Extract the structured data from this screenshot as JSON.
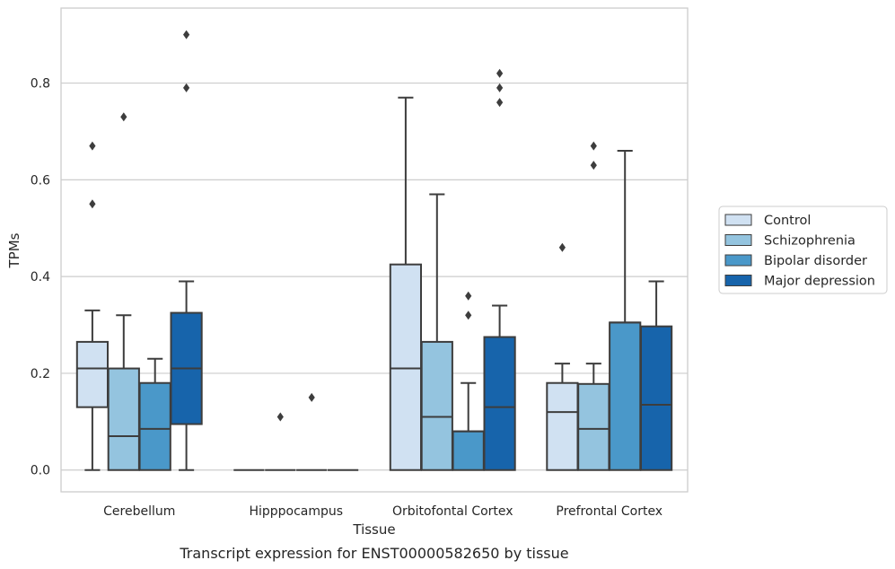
{
  "chart_data": {
    "type": "boxplot",
    "title": "",
    "caption": "Transcript expression for ENST00000582650 by tissue",
    "xlabel": "Tissue",
    "ylabel": "TPMs",
    "ylim": [
      -0.045,
      0.955
    ],
    "yticks": [
      "0.0",
      "0.2",
      "0.4",
      "0.6",
      "0.8"
    ],
    "grid": "horizontal",
    "legend_position": "right",
    "categories": [
      "Cerebellum",
      "Hipppocampus",
      "Orbitofontal Cortex",
      "Prefrontal Cortex"
    ],
    "series": [
      {
        "name": "Control",
        "color": "#d0e1f2",
        "boxes": [
          {
            "whislo": 0.0,
            "q1": 0.13,
            "med": 0.21,
            "q3": 0.265,
            "whishi": 0.33,
            "fliers": [
              0.55,
              0.67
            ]
          },
          {
            "whislo": 0.0,
            "q1": 0.0,
            "med": 0.0,
            "q3": 0.0,
            "whishi": 0.0,
            "fliers": []
          },
          {
            "whislo": 0.0,
            "q1": 0.0,
            "med": 0.21,
            "q3": 0.425,
            "whishi": 0.77,
            "fliers": []
          },
          {
            "whislo": 0.0,
            "q1": 0.0,
            "med": 0.12,
            "q3": 0.18,
            "whishi": 0.22,
            "fliers": [
              0.46
            ]
          }
        ]
      },
      {
        "name": "Schizophrenia",
        "color": "#94c4df",
        "boxes": [
          {
            "whislo": 0.0,
            "q1": 0.0,
            "med": 0.07,
            "q3": 0.21,
            "whishi": 0.32,
            "fliers": [
              0.73
            ]
          },
          {
            "whislo": 0.0,
            "q1": 0.0,
            "med": 0.0,
            "q3": 0.0,
            "whishi": 0.0,
            "fliers": [
              0.11
            ]
          },
          {
            "whislo": 0.0,
            "q1": 0.0,
            "med": 0.11,
            "q3": 0.265,
            "whishi": 0.57,
            "fliers": []
          },
          {
            "whislo": 0.0,
            "q1": 0.0,
            "med": 0.085,
            "q3": 0.178,
            "whishi": 0.22,
            "fliers": [
              0.63,
              0.67
            ]
          }
        ]
      },
      {
        "name": "Bipolar disorder",
        "color": "#4a98c9",
        "boxes": [
          {
            "whislo": 0.0,
            "q1": 0.0,
            "med": 0.085,
            "q3": 0.18,
            "whishi": 0.23,
            "fliers": []
          },
          {
            "whislo": 0.0,
            "q1": 0.0,
            "med": 0.0,
            "q3": 0.0,
            "whishi": 0.0,
            "fliers": [
              0.15
            ]
          },
          {
            "whislo": 0.0,
            "q1": 0.0,
            "med": 0.08,
            "q3": 0.08,
            "whishi": 0.18,
            "fliers": [
              0.32,
              0.36
            ]
          },
          {
            "whislo": 0.0,
            "q1": 0.0,
            "med": 0.305,
            "q3": 0.305,
            "whishi": 0.66,
            "fliers": []
          }
        ]
      },
      {
        "name": "Major depression",
        "color": "#1764ab",
        "boxes": [
          {
            "whislo": 0.0,
            "q1": 0.095,
            "med": 0.21,
            "q3": 0.325,
            "whishi": 0.39,
            "fliers": [
              0.79,
              0.9
            ]
          },
          {
            "whislo": 0.0,
            "q1": 0.0,
            "med": 0.0,
            "q3": 0.0,
            "whishi": 0.0,
            "fliers": []
          },
          {
            "whislo": 0.0,
            "q1": 0.0,
            "med": 0.13,
            "q3": 0.275,
            "whishi": 0.34,
            "fliers": [
              0.76,
              0.79,
              0.82
            ]
          },
          {
            "whislo": 0.0,
            "q1": 0.0,
            "med": 0.135,
            "q3": 0.297,
            "whishi": 0.39,
            "fliers": []
          }
        ]
      }
    ]
  }
}
